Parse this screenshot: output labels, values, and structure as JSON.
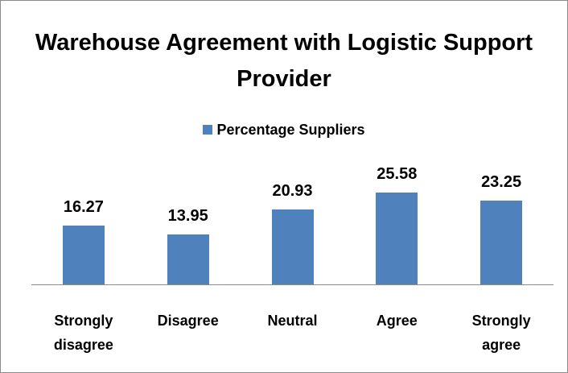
{
  "chart_data": {
    "type": "bar",
    "title": "Warehouse Agreement with Logistic Support Provider",
    "categories": [
      "Strongly disagree",
      "Disagree",
      "Neutral",
      "Agree",
      "Strongly agree"
    ],
    "series": [
      {
        "name": "Percentage Suppliers",
        "color": "#4f81bd",
        "values": [
          16.27,
          13.95,
          20.93,
          25.58,
          23.25
        ]
      }
    ],
    "legend": "top"
  }
}
